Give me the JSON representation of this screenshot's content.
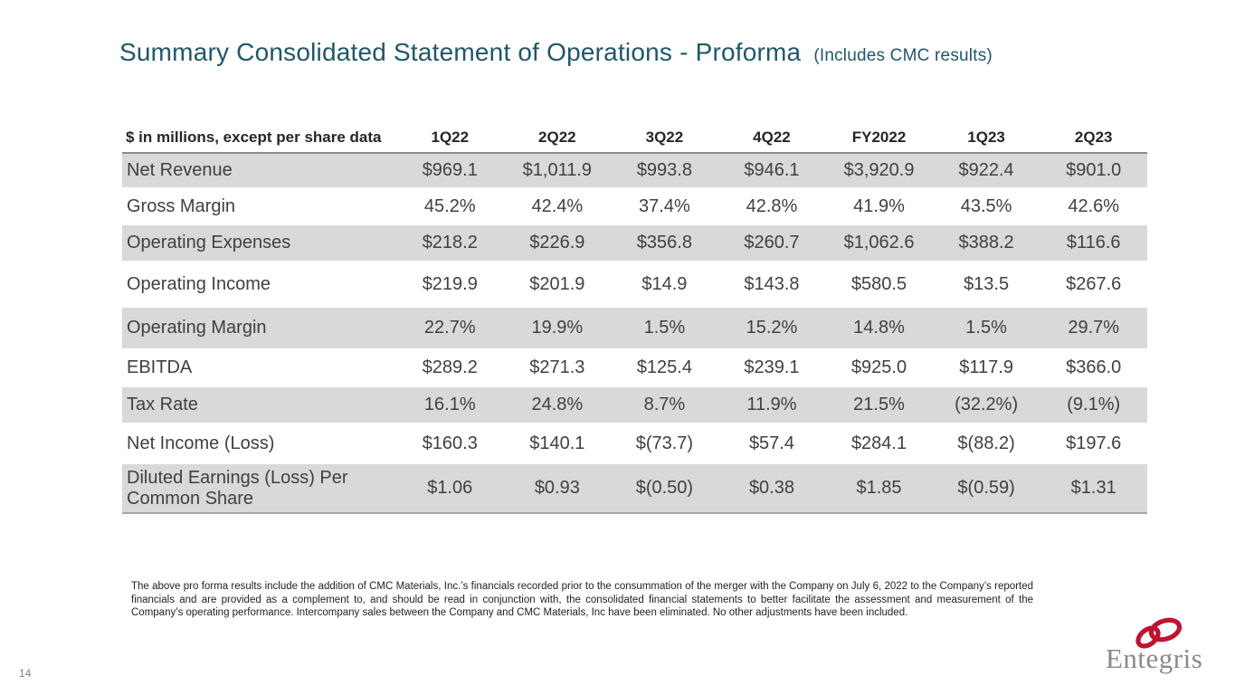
{
  "slide": {
    "title": "Summary Consolidated Statement of Operations - Proforma",
    "title_suffix": "(Includes CMC results)",
    "page_number": "14",
    "footnote": "The above pro forma results include the addition of CMC Materials, Inc.’s financials recorded prior to the consummation of the merger with the Company on July 6, 2022 to the Company’s reported financials and are provided as a complement to, and should be read in conjunction with, the consolidated financial statements to better facilitate the assessment and measurement of the Company’s operating performance. Intercompany sales between the Company and CMC Materials, Inc have been eliminated. No other adjustments have been included.",
    "logo_text": "Entegris"
  },
  "colors": {
    "title_teal": "#20576A",
    "row_shade": "#D9D9D9",
    "header_text": "#262626",
    "body_text": "#404040",
    "header_rule": "#8C8C8C",
    "bottom_rule": "#A6A6A6",
    "logo_red": "#C01330",
    "logo_gray": "#8A8A8D"
  },
  "table": {
    "header": [
      "$ in millions, except per share data",
      "1Q22",
      "2Q22",
      "3Q22",
      "4Q22",
      "FY2022",
      "1Q23",
      "2Q23"
    ],
    "rows": [
      {
        "label": "Net Revenue",
        "shaded": true,
        "values": [
          "$969.1",
          "$1,011.9",
          "$993.8",
          "$946.1",
          "$3,920.9",
          "$922.4",
          "$901.0"
        ]
      },
      {
        "label": "Gross Margin",
        "shaded": false,
        "values": [
          "45.2%",
          "42.4%",
          "37.4%",
          "42.8%",
          "41.9%",
          "43.5%",
          "42.6%"
        ]
      },
      {
        "label": "Operating Expenses",
        "shaded": true,
        "values": [
          "$218.2",
          "$226.9",
          "$356.8",
          "$260.7",
          "$1,062.6",
          "$388.2",
          "$116.6"
        ]
      },
      {
        "label": "Operating Income",
        "shaded": false,
        "values": [
          "$219.9",
          "$201.9",
          "$14.9",
          "$143.8",
          "$580.5",
          "$13.5",
          "$267.6"
        ]
      },
      {
        "label": "Operating Margin",
        "shaded": true,
        "values": [
          "22.7%",
          "19.9%",
          "1.5%",
          "15.2%",
          "14.8%",
          "1.5%",
          "29.7%"
        ]
      },
      {
        "label": "EBITDA",
        "shaded": false,
        "values": [
          "$289.2",
          "$271.3",
          "$125.4",
          "$239.1",
          "$925.0",
          "$117.9",
          "$366.0"
        ]
      },
      {
        "label": "Tax Rate",
        "shaded": true,
        "values": [
          "16.1%",
          "24.8%",
          "8.7%",
          "11.9%",
          "21.5%",
          "(32.2%)",
          "(9.1%)"
        ]
      },
      {
        "label": "Net Income (Loss)",
        "shaded": false,
        "values": [
          "$160.3",
          "$140.1",
          "$(73.7)",
          "$57.4",
          "$284.1",
          "$(88.2)",
          "$197.6"
        ]
      },
      {
        "label": "Diluted Earnings (Loss) Per Common Share",
        "shaded": true,
        "values": [
          "$1.06",
          "$0.93",
          "$(0.50)",
          "$0.38",
          "$1.85",
          "$(0.59)",
          "$1.31"
        ]
      }
    ]
  }
}
